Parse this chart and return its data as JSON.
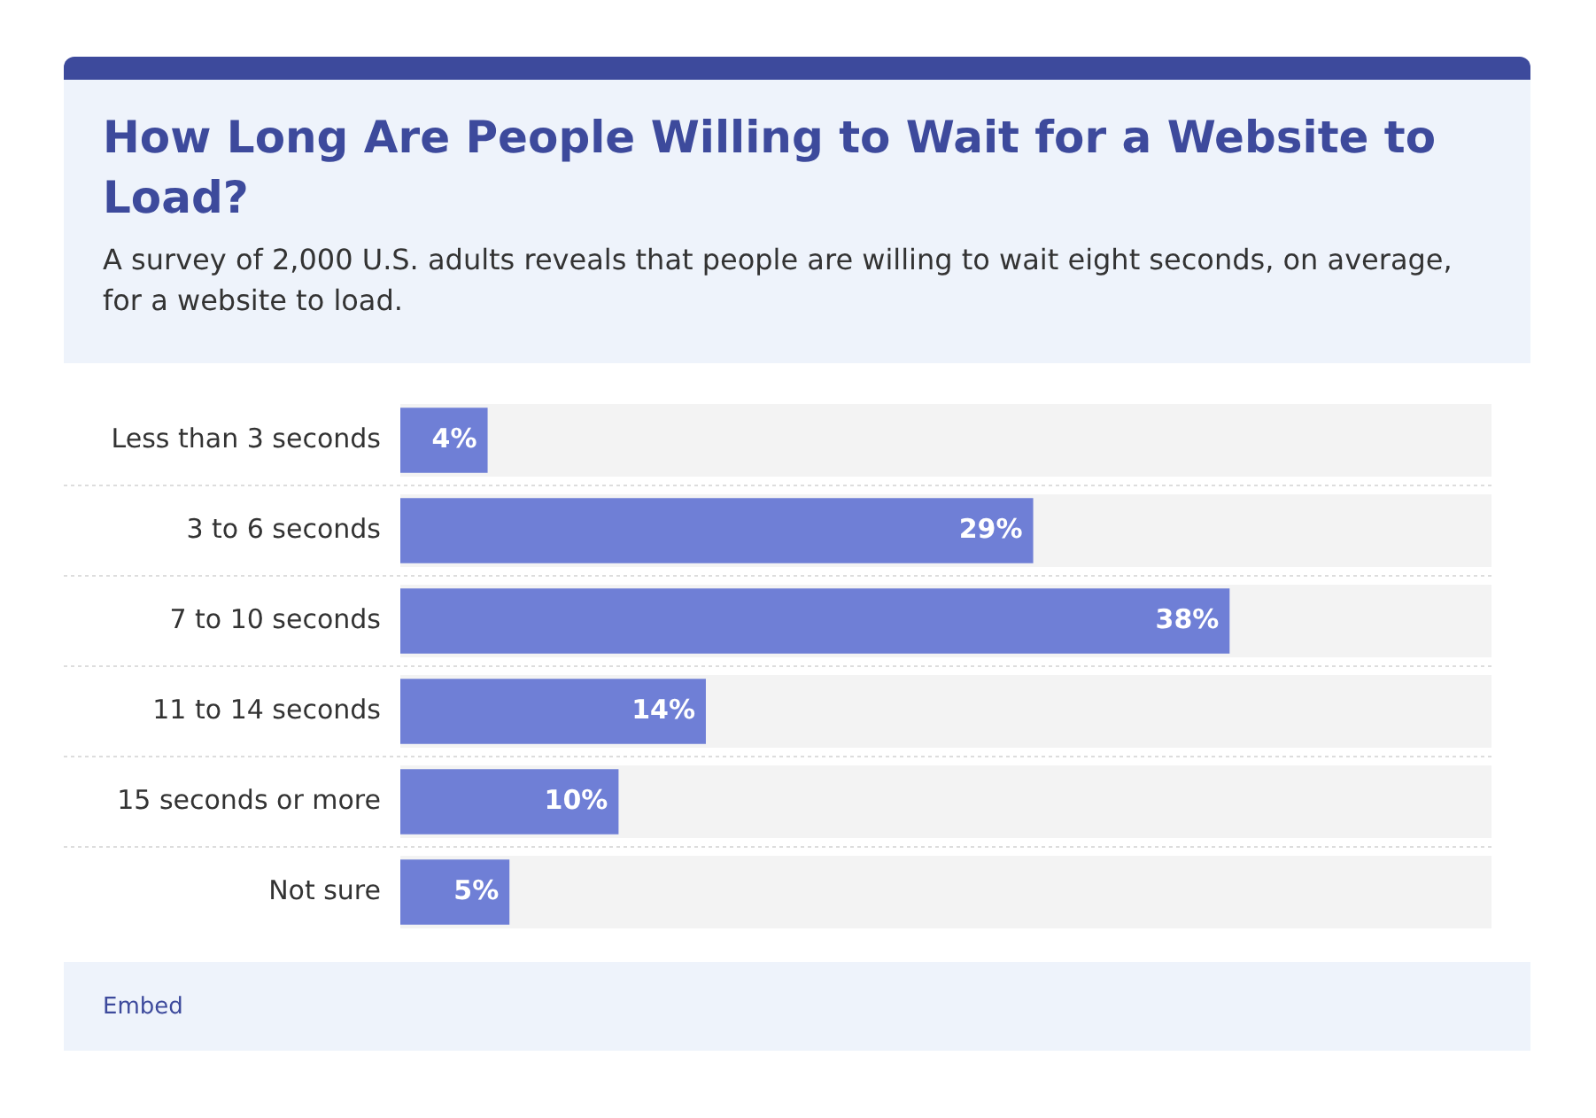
{
  "chart_data": {
    "type": "bar",
    "orientation": "horizontal",
    "title": "How Long Are People Willing to Wait for a Website to Load?",
    "subtitle": "A survey of 2,000 U.S. adults reveals that people are willing to wait eight seconds, on average, for a website to load.",
    "categories": [
      "Less than 3 seconds",
      "3 to 6 seconds",
      "7 to 10 seconds",
      "11 to 14 seconds",
      "15 seconds or more",
      "Not sure"
    ],
    "values": [
      4,
      29,
      38,
      14,
      10,
      5
    ],
    "value_labels": [
      "4%",
      "29%",
      "38%",
      "14%",
      "10%",
      "5%"
    ],
    "color": "#6f7fd6",
    "xlim": [
      0,
      50
    ],
    "tick_labels": "y",
    "legend": false,
    "annotations": [
      "Embed"
    ]
  }
}
